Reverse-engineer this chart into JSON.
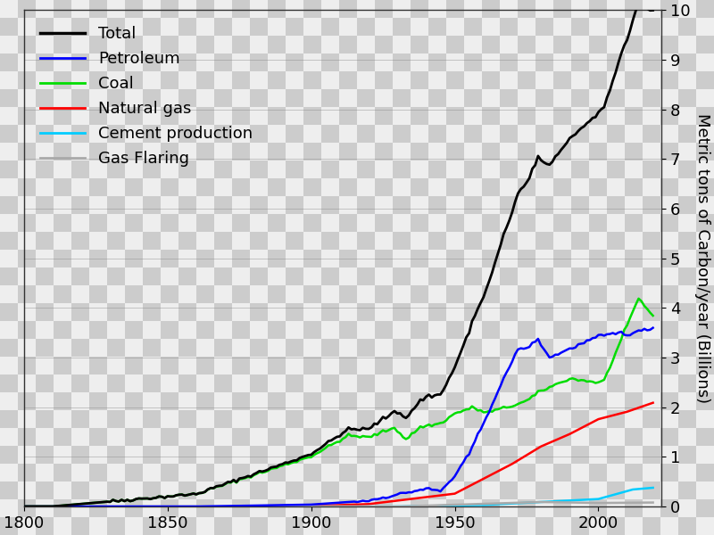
{
  "title": "",
  "ylabel": "Metric tons of Carbon/year (Billions)",
  "xlim": [
    1800,
    2022
  ],
  "ylim": [
    0,
    10
  ],
  "yticks": [
    0,
    1,
    2,
    3,
    4,
    5,
    6,
    7,
    8,
    9,
    10
  ],
  "xticks": [
    1800,
    1850,
    1900,
    1950,
    2000
  ],
  "checker_light": "#e8e8e8",
  "checker_dark": "#c8c8c8",
  "checker_size": 20,
  "series": {
    "Total": {
      "color": "#000000",
      "linewidth": 2.0
    },
    "Petroleum": {
      "color": "#0000ff",
      "linewidth": 1.8
    },
    "Coal": {
      "color": "#00dd00",
      "linewidth": 1.8
    },
    "Natural gas": {
      "color": "#ff0000",
      "linewidth": 1.8
    },
    "Cement production": {
      "color": "#00ccff",
      "linewidth": 1.8
    },
    "Gas Flaring": {
      "color": "#aaaaaa",
      "linewidth": 1.8
    }
  },
  "legend_fontsize": 13,
  "tick_fontsize": 13,
  "ylabel_fontsize": 13
}
